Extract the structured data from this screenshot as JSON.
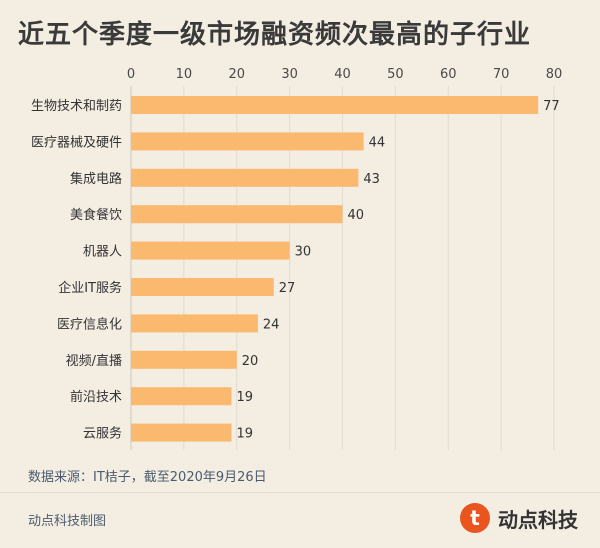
{
  "chart_data": {
    "type": "bar",
    "orientation": "horizontal",
    "title": "近五个季度一级市场融资频次最高的子行业",
    "categories": [
      "生物技术和制药",
      "医疗器械及硬件",
      "集成电路",
      "美食餐饮",
      "机器人",
      "企业IT服务",
      "医疗信息化",
      "视频/直播",
      "前沿技术",
      "云服务"
    ],
    "values": [
      77,
      44,
      43,
      40,
      30,
      27,
      24,
      20,
      19,
      19
    ],
    "xlim": [
      0,
      80
    ],
    "xticks": [
      0,
      10,
      20,
      30,
      40,
      50,
      60,
      70,
      80
    ],
    "axis_position": "top",
    "bar_color": "#fab96e",
    "grid": true,
    "data_labels": true
  },
  "footer": {
    "source": "数据来源：IT桔子，截至2020年9月26日",
    "credit": "动点科技制图",
    "brand_name": "动点科技",
    "brand_icon_letter": "t",
    "brand_icon": "t-logo-icon",
    "brand_color": "#e9541f"
  }
}
